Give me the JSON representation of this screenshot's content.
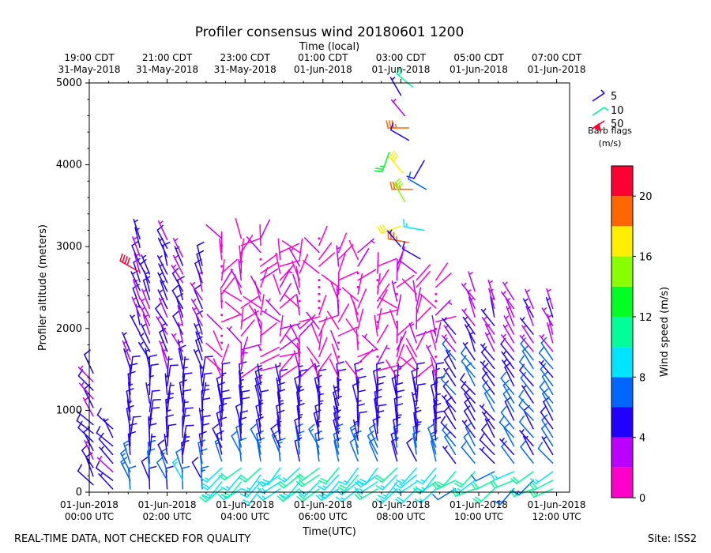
{
  "chart_data": {
    "type": "wind-barb-profile",
    "title": "Profiler consensus wind 20180601 1200",
    "xlabel": "Time(UTC)",
    "top_xlabel": "Time (local)",
    "ylabel": "Profiler altitude (meters)",
    "ylim": [
      0,
      5000
    ],
    "xlim_hours_utc": [
      0,
      12.33
    ],
    "y_ticks": [
      0,
      1000,
      2000,
      3000,
      4000,
      5000
    ],
    "x_ticks_bottom": [
      {
        "hour": 0,
        "line1": "01-Jun-2018",
        "line2": "00:00 UTC"
      },
      {
        "hour": 2,
        "line1": "01-Jun-2018",
        "line2": "02:00 UTC"
      },
      {
        "hour": 4,
        "line1": "01-Jun-2018",
        "line2": "04:00 UTC"
      },
      {
        "hour": 6,
        "line1": "01-Jun-2018",
        "line2": "06:00 UTC"
      },
      {
        "hour": 8,
        "line1": "01-Jun-2018",
        "line2": "08:00 UTC"
      },
      {
        "hour": 10,
        "line1": "01-Jun-2018",
        "line2": "10:00 UTC"
      },
      {
        "hour": 12,
        "line1": "01-Jun-2018",
        "line2": "12:00 UTC"
      }
    ],
    "x_ticks_top": [
      {
        "hour": 0,
        "line1": "19:00 CDT",
        "line2": "31-May-2018"
      },
      {
        "hour": 2,
        "line1": "21:00 CDT",
        "line2": "31-May-2018"
      },
      {
        "hour": 4,
        "line1": "23:00 CDT",
        "line2": "31-May-2018"
      },
      {
        "hour": 6,
        "line1": "01:00 CDT",
        "line2": "01-Jun-2018"
      },
      {
        "hour": 8,
        "line1": "03:00 CDT",
        "line2": "01-Jun-2018"
      },
      {
        "hour": 10,
        "line1": "05:00 CDT",
        "line2": "01-Jun-2018"
      },
      {
        "hour": 12,
        "line1": "07:00 CDT",
        "line2": "01-Jun-2018"
      }
    ],
    "barb_legend": {
      "title_line1": "Barb flags",
      "title_line2": "(m/s)",
      "entries": [
        {
          "label": "5",
          "color": "#2200ff"
        },
        {
          "label": "10",
          "color": "#00f0a0"
        },
        {
          "label": "50",
          "color": "#ff0033"
        }
      ]
    },
    "colorbar": {
      "label": "Wind speed (m/s)",
      "ticks": [
        "0",
        "4",
        "8",
        "12",
        "16",
        "20"
      ],
      "range": [
        0,
        22
      ],
      "bins": [
        {
          "from": 0,
          "to": 2,
          "color": "#ff00cc"
        },
        {
          "from": 2,
          "to": 4,
          "color": "#bb00ff"
        },
        {
          "from": 4,
          "to": 6,
          "color": "#2200ff"
        },
        {
          "from": 6,
          "to": 8,
          "color": "#0066ff"
        },
        {
          "from": 8,
          "to": 10,
          "color": "#00e5ff"
        },
        {
          "from": 10,
          "to": 12,
          "color": "#00ff99"
        },
        {
          "from": 12,
          "to": 14,
          "color": "#00ff22"
        },
        {
          "from": 14,
          "to": 16,
          "color": "#88ff00"
        },
        {
          "from": 16,
          "to": 18,
          "color": "#ffee00"
        },
        {
          "from": 18,
          "to": 20,
          "color": "#ff6600"
        },
        {
          "from": 20,
          "to": 22,
          "color": "#ff0033"
        }
      ]
    },
    "columns": [
      {
        "hour": 0.1,
        "bottom": 50,
        "top": 1500,
        "mode": "low"
      },
      {
        "hour": 0.6,
        "bottom": 0,
        "top": 800,
        "mode": "low"
      },
      {
        "hour": 1.05,
        "bottom": 0,
        "top": 1750,
        "mode": "early"
      },
      {
        "hour": 1.3,
        "bottom": 1900,
        "top": 3150,
        "mode": "early"
      },
      {
        "hour": 1.55,
        "bottom": 0,
        "top": 2700,
        "mode": "early"
      },
      {
        "hour": 2.0,
        "bottom": 0,
        "top": 3100,
        "mode": "early"
      },
      {
        "hour": 2.4,
        "bottom": 0,
        "top": 2900,
        "mode": "early"
      },
      {
        "hour": 2.9,
        "bottom": 0,
        "top": 2800,
        "mode": "early"
      },
      {
        "hour": 3.4,
        "bottom": 0,
        "top": 3100,
        "mode": "main"
      },
      {
        "hour": 3.9,
        "bottom": 0,
        "top": 3150,
        "mode": "main"
      },
      {
        "hour": 4.4,
        "bottom": 0,
        "top": 3100,
        "mode": "main"
      },
      {
        "hour": 4.9,
        "bottom": 0,
        "top": 3000,
        "mode": "main"
      },
      {
        "hour": 5.4,
        "bottom": 0,
        "top": 3000,
        "mode": "main"
      },
      {
        "hour": 5.9,
        "bottom": 0,
        "top": 3150,
        "mode": "main"
      },
      {
        "hour": 6.4,
        "bottom": 0,
        "top": 3000,
        "mode": "main"
      },
      {
        "hour": 6.9,
        "bottom": 0,
        "top": 3000,
        "mode": "main"
      },
      {
        "hour": 7.4,
        "bottom": 0,
        "top": 2800,
        "mode": "main"
      },
      {
        "hour": 7.9,
        "bottom": 0,
        "top": 2800,
        "mode": "main"
      },
      {
        "hour": 8.4,
        "bottom": 0,
        "top": 2700,
        "mode": "main"
      },
      {
        "hour": 8.9,
        "bottom": 0,
        "top": 2600,
        "mode": "main"
      },
      {
        "hour": 9.4,
        "bottom": 0,
        "top": 2000,
        "mode": "late"
      },
      {
        "hour": 9.9,
        "bottom": 0,
        "top": 2500,
        "mode": "late"
      },
      {
        "hour": 10.4,
        "bottom": 0,
        "top": 2450,
        "mode": "late"
      },
      {
        "hour": 10.9,
        "bottom": 0,
        "top": 2350,
        "mode": "late"
      },
      {
        "hour": 11.4,
        "bottom": 0,
        "top": 2250,
        "mode": "late"
      },
      {
        "hour": 11.9,
        "bottom": 0,
        "top": 2300,
        "mode": "late"
      }
    ],
    "high_segments": [
      {
        "hour": 8.0,
        "altitude": 4850,
        "speed": 4,
        "dir": 330
      },
      {
        "hour": 8.3,
        "altitude": 4950,
        "speed": 10,
        "dir": 310
      },
      {
        "hour": 8.1,
        "altitude": 4600,
        "speed": 3,
        "dir": 320
      },
      {
        "hour": 8.2,
        "altitude": 4450,
        "speed": 19,
        "dir": 270
      },
      {
        "hour": 8.2,
        "altitude": 4300,
        "speed": 5,
        "dir": 300
      },
      {
        "hour": 7.7,
        "altitude": 4150,
        "speed": 13,
        "dir": 200
      },
      {
        "hour": 8.6,
        "altitude": 4050,
        "speed": 5,
        "dir": 210
      },
      {
        "hour": 8.05,
        "altitude": 3900,
        "speed": 17,
        "dir": 320
      },
      {
        "hour": 8.3,
        "altitude": 3700,
        "speed": 19,
        "dir": 270
      },
      {
        "hour": 8.1,
        "altitude": 3550,
        "speed": 15,
        "dir": 330
      },
      {
        "hour": 8.65,
        "altitude": 3700,
        "speed": 6,
        "dir": 300
      },
      {
        "hour": 8.0,
        "altitude": 3250,
        "speed": 17,
        "dir": 250
      },
      {
        "hour": 8.6,
        "altitude": 3200,
        "speed": 8,
        "dir": 280
      },
      {
        "hour": 8.2,
        "altitude": 3050,
        "speed": 19,
        "dir": 280
      },
      {
        "hour": 8.0,
        "altitude": 3000,
        "speed": 4,
        "dir": 320
      },
      {
        "hour": 8.5,
        "altitude": 2850,
        "speed": 5,
        "dir": 300
      },
      {
        "hour": 1.25,
        "altitude": 2700,
        "speed": 22,
        "dir": 300
      }
    ],
    "footer_left": "REAL-TIME DATA, NOT CHECKED FOR QUALITY",
    "footer_right": "Site: ISS2"
  }
}
